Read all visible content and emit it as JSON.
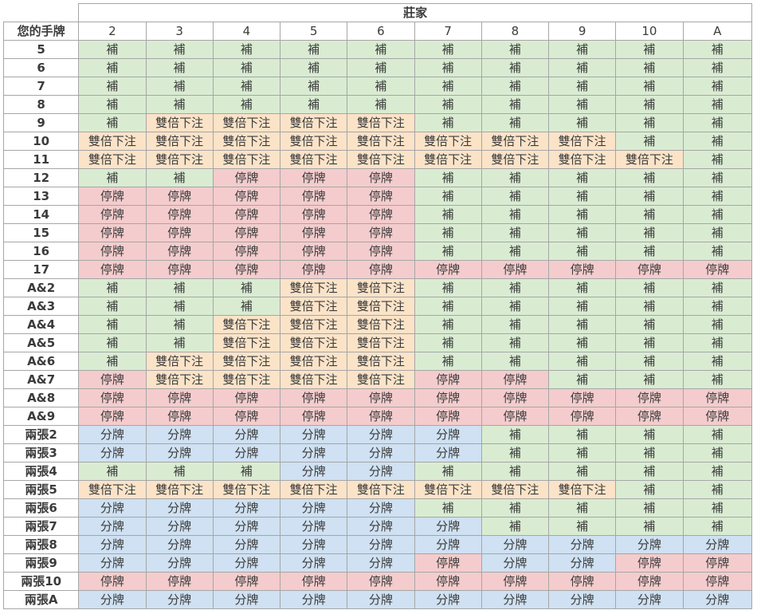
{
  "table": {
    "dealer_title": "莊家",
    "hand_header": "您的手牌",
    "dealer_cards": [
      "2",
      "3",
      "4",
      "5",
      "6",
      "7",
      "8",
      "9",
      "10",
      "A"
    ],
    "action_labels": {
      "H": "補",
      "D": "雙倍下注",
      "S": "停牌",
      "P": "分牌"
    },
    "action_colors": {
      "H": "#d9ecd2",
      "D": "#fbe3c8",
      "S": "#f4cccd",
      "P": "#cfe1f2"
    },
    "rows": [
      {
        "hand": "5",
        "actions": [
          "H",
          "H",
          "H",
          "H",
          "H",
          "H",
          "H",
          "H",
          "H",
          "H"
        ]
      },
      {
        "hand": "6",
        "actions": [
          "H",
          "H",
          "H",
          "H",
          "H",
          "H",
          "H",
          "H",
          "H",
          "H"
        ]
      },
      {
        "hand": "7",
        "actions": [
          "H",
          "H",
          "H",
          "H",
          "H",
          "H",
          "H",
          "H",
          "H",
          "H"
        ]
      },
      {
        "hand": "8",
        "actions": [
          "H",
          "H",
          "H",
          "H",
          "H",
          "H",
          "H",
          "H",
          "H",
          "H"
        ]
      },
      {
        "hand": "9",
        "actions": [
          "H",
          "D",
          "D",
          "D",
          "D",
          "H",
          "H",
          "H",
          "H",
          "H"
        ]
      },
      {
        "hand": "10",
        "actions": [
          "D",
          "D",
          "D",
          "D",
          "D",
          "D",
          "D",
          "D",
          "H",
          "H"
        ]
      },
      {
        "hand": "11",
        "actions": [
          "D",
          "D",
          "D",
          "D",
          "D",
          "D",
          "D",
          "D",
          "D",
          "H"
        ]
      },
      {
        "hand": "12",
        "actions": [
          "H",
          "H",
          "S",
          "S",
          "S",
          "H",
          "H",
          "H",
          "H",
          "H"
        ]
      },
      {
        "hand": "13",
        "actions": [
          "S",
          "S",
          "S",
          "S",
          "S",
          "H",
          "H",
          "H",
          "H",
          "H"
        ]
      },
      {
        "hand": "14",
        "actions": [
          "S",
          "S",
          "S",
          "S",
          "S",
          "H",
          "H",
          "H",
          "H",
          "H"
        ]
      },
      {
        "hand": "15",
        "actions": [
          "S",
          "S",
          "S",
          "S",
          "S",
          "H",
          "H",
          "H",
          "H",
          "H"
        ]
      },
      {
        "hand": "16",
        "actions": [
          "S",
          "S",
          "S",
          "S",
          "S",
          "H",
          "H",
          "H",
          "H",
          "H"
        ]
      },
      {
        "hand": "17",
        "actions": [
          "S",
          "S",
          "S",
          "S",
          "S",
          "S",
          "S",
          "S",
          "S",
          "S"
        ]
      },
      {
        "hand": "A&2",
        "actions": [
          "H",
          "H",
          "H",
          "D",
          "D",
          "H",
          "H",
          "H",
          "H",
          "H"
        ]
      },
      {
        "hand": "A&3",
        "actions": [
          "H",
          "H",
          "H",
          "D",
          "D",
          "H",
          "H",
          "H",
          "H",
          "H"
        ]
      },
      {
        "hand": "A&4",
        "actions": [
          "H",
          "H",
          "D",
          "D",
          "D",
          "H",
          "H",
          "H",
          "H",
          "H"
        ]
      },
      {
        "hand": "A&5",
        "actions": [
          "H",
          "H",
          "D",
          "D",
          "D",
          "H",
          "H",
          "H",
          "H",
          "H"
        ]
      },
      {
        "hand": "A&6",
        "actions": [
          "H",
          "D",
          "D",
          "D",
          "D",
          "H",
          "H",
          "H",
          "H",
          "H"
        ]
      },
      {
        "hand": "A&7",
        "actions": [
          "S",
          "D",
          "D",
          "D",
          "D",
          "S",
          "S",
          "H",
          "H",
          "H"
        ]
      },
      {
        "hand": "A&8",
        "actions": [
          "S",
          "S",
          "S",
          "S",
          "S",
          "S",
          "S",
          "S",
          "S",
          "S"
        ]
      },
      {
        "hand": "A&9",
        "actions": [
          "S",
          "S",
          "S",
          "S",
          "S",
          "S",
          "S",
          "S",
          "S",
          "S"
        ]
      },
      {
        "hand": "兩張2",
        "actions": [
          "P",
          "P",
          "P",
          "P",
          "P",
          "P",
          "H",
          "H",
          "H",
          "H"
        ]
      },
      {
        "hand": "兩張3",
        "actions": [
          "P",
          "P",
          "P",
          "P",
          "P",
          "P",
          "H",
          "H",
          "H",
          "H"
        ]
      },
      {
        "hand": "兩張4",
        "actions": [
          "H",
          "H",
          "H",
          "P",
          "P",
          "H",
          "H",
          "H",
          "H",
          "H"
        ]
      },
      {
        "hand": "兩張5",
        "actions": [
          "D",
          "D",
          "D",
          "D",
          "D",
          "D",
          "D",
          "D",
          "H",
          "H"
        ]
      },
      {
        "hand": "兩張6",
        "actions": [
          "P",
          "P",
          "P",
          "P",
          "P",
          "H",
          "H",
          "H",
          "H",
          "H"
        ]
      },
      {
        "hand": "兩張7",
        "actions": [
          "P",
          "P",
          "P",
          "P",
          "P",
          "P",
          "H",
          "H",
          "H",
          "H"
        ]
      },
      {
        "hand": "兩張8",
        "actions": [
          "P",
          "P",
          "P",
          "P",
          "P",
          "P",
          "P",
          "P",
          "P",
          "P"
        ]
      },
      {
        "hand": "兩張9",
        "actions": [
          "P",
          "P",
          "P",
          "P",
          "P",
          "S",
          "P",
          "P",
          "S",
          "S"
        ]
      },
      {
        "hand": "兩張10",
        "actions": [
          "S",
          "S",
          "S",
          "S",
          "S",
          "S",
          "S",
          "S",
          "S",
          "S"
        ]
      },
      {
        "hand": "兩張A",
        "actions": [
          "P",
          "P",
          "P",
          "P",
          "P",
          "P",
          "P",
          "P",
          "P",
          "P"
        ]
      }
    ]
  }
}
